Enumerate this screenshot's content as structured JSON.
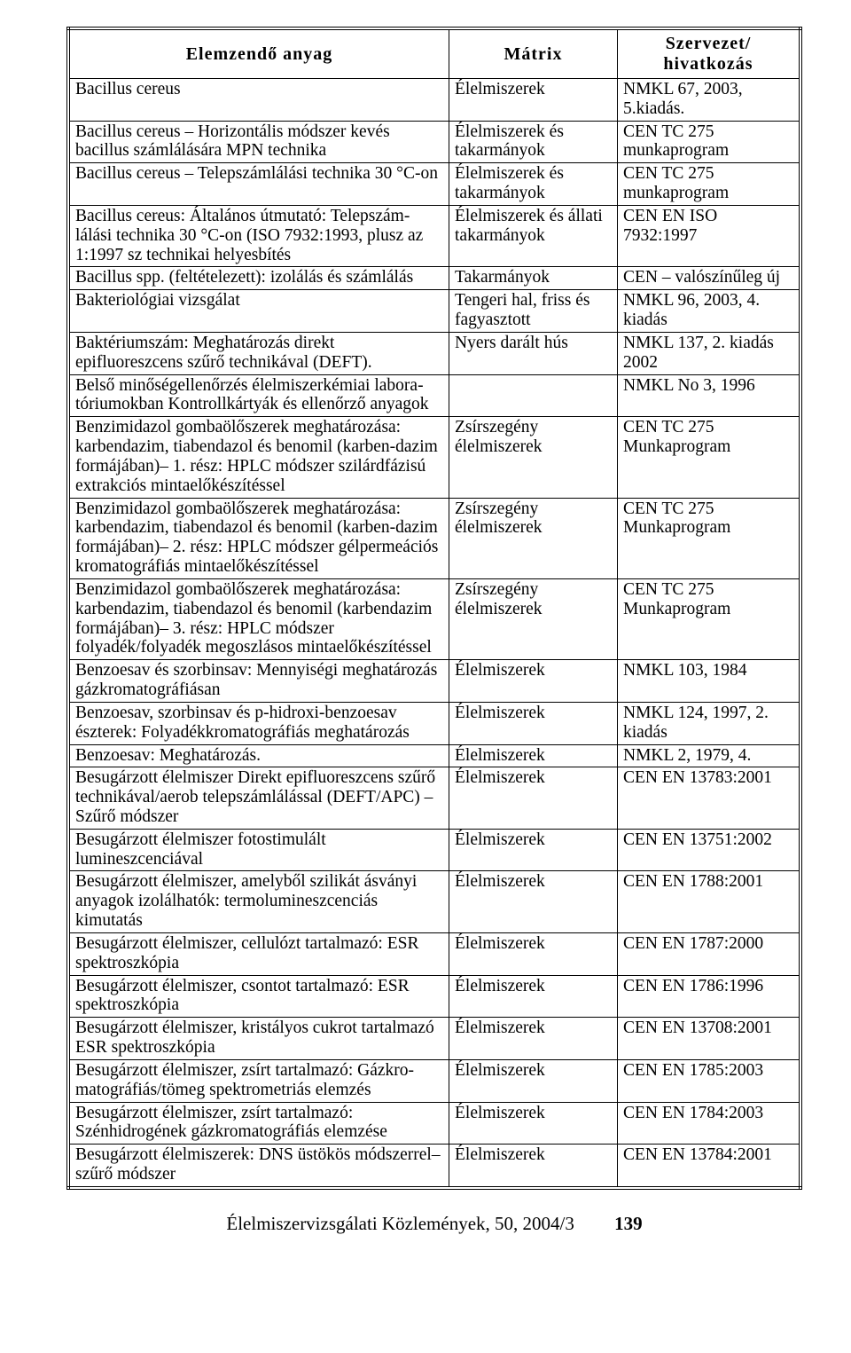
{
  "table": {
    "headers": [
      "Elemzendő anyag",
      "Mátrix",
      "Szervezet/\nhivatkozás"
    ],
    "header_fontsize": 20,
    "cell_fontsize": 19.5,
    "border_color": "#000000",
    "background_color": "#ffffff",
    "rows": [
      [
        "Bacillus cereus",
        "Élelmiszerek",
        "NMKL 67, 2003, 5.kiadás."
      ],
      [
        "Bacillus cereus – Horizontális módszer kevés bacillus számlálására MPN technika",
        "Élelmiszerek és takarmányok",
        "CEN TC 275 munkaprogram"
      ],
      [
        "Bacillus cereus – Telepszámlálási technika 30 °C-on",
        "Élelmiszerek és takarmányok",
        "CEN TC 275 munkaprogram"
      ],
      [
        "Bacillus cereus: Általános útmutató: Telepszám-lálási technika 30 °C-on (ISO 7932:1993, plusz az 1:1997 sz technikai helyesbítés",
        "Élelmiszerek és állati takarmányok",
        "CEN EN ISO 7932:1997"
      ],
      [
        "Bacillus spp. (feltételezett): izolálás és számlálás",
        "Takarmányok",
        "CEN – valószínűleg új"
      ],
      [
        "Bakteriológiai vizsgálat",
        "Tengeri hal, friss és fagyasztott",
        "NMKL 96, 2003, 4. kiadás"
      ],
      [
        "Baktériumszám: Meghatározás direkt epifluoreszcens szűrő technikával (DEFT).",
        "Nyers darált hús",
        "NMKL 137, 2. kiadás 2002"
      ],
      [
        "Belső minőségellenőrzés élelmiszerkémiai labora-tóriumokban Kontrollkártyák és ellenőrző anyagok",
        "",
        "NMKL No 3, 1996"
      ],
      [
        "Benzimidazol gombaölőszerek meghatározása: karbendazim, tiabendazol és benomil (karben-dazim formájában)– 1. rész: HPLC módszer szilárdfázisú extrakciós mintaelőkészítéssel",
        "Zsírszegény élelmiszerek",
        "CEN TC 275 Munkaprogram"
      ],
      [
        "Benzimidazol gombaölőszerek meghatározása: karbendazim, tiabendazol és benomil (karben-dazim formájában)– 2. rész: HPLC módszer gélpermeációs kromatográfiás mintaelőkészítéssel",
        "Zsírszegény élelmiszerek",
        "CEN TC 275 Munkaprogram"
      ],
      [
        "Benzimidazol gombaölőszerek meghatározása: karbendazim, tiabendazol és benomil (karbendazim formájában)– 3. rész: HPLC módszer folyadék/folyadék megoszlásos mintaelőkészítéssel",
        "Zsírszegény élelmiszerek",
        "CEN TC 275 Munkaprogram"
      ],
      [
        "Benzoesav és szorbinsav: Mennyiségi meghatározás gázkromatográfiásan",
        "Élelmiszerek",
        "NMKL 103, 1984"
      ],
      [
        "Benzoesav, szorbinsav és p-hidroxi-benzoesav észterek: Folyadékkromatográfiás meghatározás",
        "Élelmiszerek",
        "NMKL 124, 1997, 2. kiadás"
      ],
      [
        "Benzoesav: Meghatározás.",
        "Élelmiszerek",
        "NMKL 2, 1979, 4."
      ],
      [
        "Besugárzott élelmiszer Direkt epifluoreszcens szűrő technikával/aerob telepszámlálással (DEFT/APC) – Szűrő módszer",
        "Élelmiszerek",
        "CEN EN 13783:2001"
      ],
      [
        "Besugárzott élelmiszer fotostimulált lumineszcenciával",
        "Élelmiszerek",
        "CEN EN 13751:2002"
      ],
      [
        "Besugárzott élelmiszer, amelyből szilikát ásványi anyagok izolálhatók: termolumineszcenciás kimutatás",
        "Élelmiszerek",
        "CEN EN 1788:2001"
      ],
      [
        "Besugárzott élelmiszer, cellulózt tartalmazó: ESR spektroszkópia",
        "Élelmiszerek",
        "CEN EN 1787:2000"
      ],
      [
        "Besugárzott élelmiszer, csontot tartalmazó: ESR spektroszkópia",
        "Élelmiszerek",
        "CEN EN 1786:1996"
      ],
      [
        "Besugárzott élelmiszer, kristályos cukrot tartalmazó ESR spektroszkópia",
        "Élelmiszerek",
        "CEN EN 13708:2001"
      ],
      [
        "Besugárzott élelmiszer, zsírt tartalmazó: Gázkro-matográfiás/tömeg spektrometriás elemzés",
        "Élelmiszerek",
        "CEN EN 1785:2003"
      ],
      [
        "Besugárzott élelmiszer, zsírt tartalmazó: Szénhidrogének gázkromatográfiás elemzése",
        "Élelmiszerek",
        "CEN EN 1784:2003"
      ],
      [
        "Besugárzott élelmiszerek: DNS üstökös módszerrel– szűrő módszer",
        "Élelmiszerek",
        "CEN EN 13784:2001"
      ]
    ]
  },
  "footer": {
    "text": "Élelmiszervizsgálati Közlemények, 50, 2004/3",
    "page_number": "139"
  }
}
